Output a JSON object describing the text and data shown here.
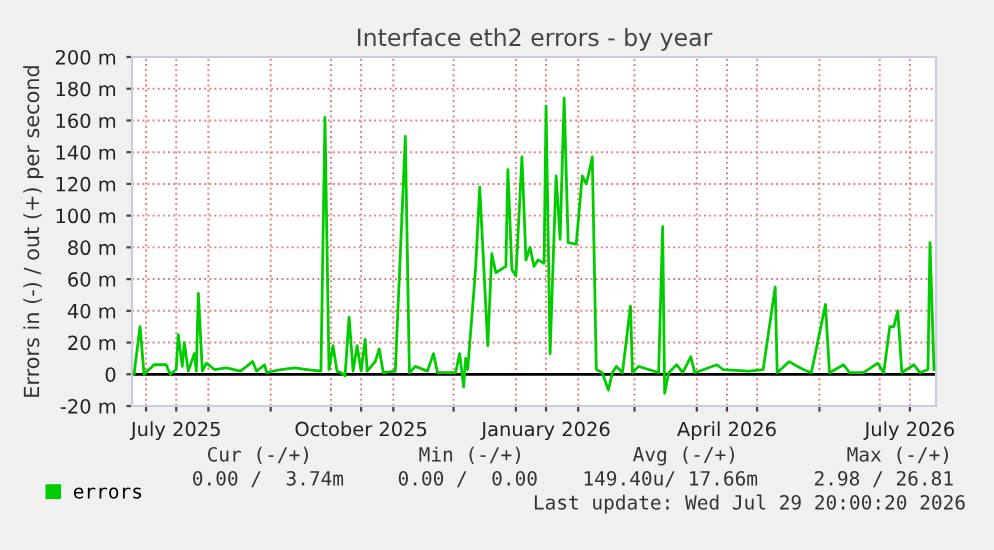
{
  "chart_data": {
    "type": "line",
    "title": "Interface eth2 errors - by year",
    "ylabel": "Errors in (-) / out (+) per second",
    "x": [
      "2025-06-25",
      "2025-06-28",
      "2025-06-30",
      "2025-07-05",
      "2025-07-11",
      "2025-07-13",
      "2025-07-16",
      "2025-07-17",
      "2025-07-19",
      "2025-07-20",
      "2025-07-22",
      "2025-07-25",
      "2025-07-26",
      "2025-07-27",
      "2025-07-29",
      "2025-07-31",
      "2025-08-04",
      "2025-08-10",
      "2025-08-17",
      "2025-08-23",
      "2025-08-25",
      "2025-08-29",
      "2025-08-30",
      "2025-09-06",
      "2025-09-13",
      "2025-09-19",
      "2025-09-26",
      "2025-09-28",
      "2025-09-30",
      "2025-10-02",
      "2025-10-04",
      "2025-10-06",
      "2025-10-08",
      "2025-10-10",
      "2025-10-12",
      "2025-10-14",
      "2025-10-16",
      "2025-10-18",
      "2025-10-19",
      "2025-10-23",
      "2025-10-25",
      "2025-10-27",
      "2025-11-02",
      "2025-11-07",
      "2025-11-09",
      "2025-11-12",
      "2025-11-18",
      "2025-11-21",
      "2025-11-23",
      "2025-12-02",
      "2025-12-04",
      "2025-12-06",
      "2025-12-07",
      "2025-12-08",
      "2025-12-11",
      "2025-12-12",
      "2025-12-14",
      "2025-12-16",
      "2025-12-18",
      "2025-12-20",
      "2025-12-22",
      "2025-12-27",
      "2025-12-28",
      "2025-12-30",
      "2026-01-01",
      "2026-01-04",
      "2026-01-06",
      "2026-01-08",
      "2026-01-10",
      "2026-01-12",
      "2026-01-15",
      "2026-01-16",
      "2026-01-18",
      "2026-01-20",
      "2026-01-21",
      "2026-01-23",
      "2026-01-25",
      "2026-01-27",
      "2026-01-31",
      "2026-02-03",
      "2026-02-05",
      "2026-02-06",
      "2026-02-08",
      "2026-02-10",
      "2026-02-13",
      "2026-02-16",
      "2026-02-18",
      "2026-02-20",
      "2026-02-23",
      "2026-02-27",
      "2026-02-28",
      "2026-03-03",
      "2026-03-08",
      "2026-03-13",
      "2026-03-15",
      "2026-03-16",
      "2026-03-18",
      "2026-03-22",
      "2026-03-25",
      "2026-03-29",
      "2026-03-31",
      "2026-04-11",
      "2026-04-14",
      "2026-04-27",
      "2026-05-04",
      "2026-05-10",
      "2026-05-11",
      "2026-05-17",
      "2026-05-21",
      "2026-05-24",
      "2026-05-28",
      "2026-06-04",
      "2026-06-06",
      "2026-06-13",
      "2026-06-16",
      "2026-06-23",
      "2026-06-30",
      "2026-07-03",
      "2026-07-06",
      "2026-07-08",
      "2026-07-10",
      "2026-07-12",
      "2026-07-18",
      "2026-07-21",
      "2026-07-25",
      "2026-07-26",
      "2026-07-28"
    ],
    "series": [
      {
        "name": "errors",
        "color": "#00cc00",
        "values": [
          0,
          30,
          0,
          6,
          6,
          0,
          3,
          25,
          5,
          20,
          2,
          13,
          2,
          51,
          2,
          7,
          3,
          4,
          2,
          8,
          2,
          6,
          1,
          3,
          4,
          3,
          2,
          162,
          3,
          18,
          2,
          1,
          -1,
          36,
          2,
          18,
          2,
          22,
          2,
          8,
          16,
          1,
          2,
          150,
          1,
          5,
          2,
          13,
          1,
          1,
          13,
          -8,
          10,
          3,
          51,
          68,
          118,
          68,
          18,
          76,
          64,
          68,
          129,
          66,
          62,
          137,
          72,
          80,
          68,
          72,
          70,
          169,
          13,
          89,
          125,
          85,
          174,
          83,
          82,
          125,
          120,
          125,
          137,
          3,
          1,
          -10,
          1,
          5,
          1,
          43,
          1,
          5,
          3,
          1,
          93,
          -12,
          1,
          6,
          1,
          11,
          1,
          6,
          3,
          2,
          3,
          55,
          1,
          8,
          5,
          3,
          1,
          44,
          1,
          6,
          1,
          1,
          7,
          1,
          30,
          30,
          40,
          1,
          6,
          1,
          3,
          83,
          3
        ]
      }
    ],
    "xlim": [
      "2025-06-24",
      "2026-07-29"
    ],
    "xticks": [
      {
        "value": "2025-07-01",
        "label": null
      },
      {
        "value": "2025-07-16",
        "label": "July 2025"
      },
      {
        "value": "2025-08-01",
        "label": null
      },
      {
        "value": "2025-09-01",
        "label": null
      },
      {
        "value": "2025-10-01",
        "label": null
      },
      {
        "value": "2025-10-16",
        "label": "October 2025"
      },
      {
        "value": "2025-11-01",
        "label": null
      },
      {
        "value": "2025-12-01",
        "label": null
      },
      {
        "value": "2026-01-01",
        "label": null
      },
      {
        "value": "2026-01-16",
        "label": "January 2026"
      },
      {
        "value": "2026-02-01",
        "label": null
      },
      {
        "value": "2026-03-01",
        "label": null
      },
      {
        "value": "2026-04-01",
        "label": null
      },
      {
        "value": "2026-04-16",
        "label": "April 2026"
      },
      {
        "value": "2026-05-01",
        "label": null
      },
      {
        "value": "2026-06-01",
        "label": null
      },
      {
        "value": "2026-07-01",
        "label": null
      },
      {
        "value": "2026-07-16",
        "label": "July 2026"
      }
    ],
    "ylim": [
      -20,
      200
    ],
    "yticks": [
      {
        "value": -20,
        "label": "-20 m"
      },
      0,
      {
        "value": 20,
        "label": "20 m"
      },
      {
        "value": 40,
        "label": "40 m"
      },
      {
        "value": 60,
        "label": "60 m"
      },
      {
        "value": 80,
        "label": "80 m"
      },
      {
        "value": 100,
        "label": "100 m"
      },
      {
        "value": 120,
        "label": "120 m"
      },
      {
        "value": 140,
        "label": "140 m"
      },
      {
        "value": 160,
        "label": "160 m"
      },
      {
        "value": 180,
        "label": "180 m"
      },
      {
        "value": 200,
        "label": "200 m"
      }
    ],
    "ref_lines": [
      {
        "axis": "y",
        "value": 0,
        "color": "#000000"
      }
    ],
    "grid": true,
    "legend": "bottom",
    "line_style": "solid",
    "marker": "none",
    "annotations": [
      "Cur (-/+)",
      "Min (-/+)",
      "Avg (-/+)",
      "Max (-/+)",
      "0.00 /  3.74m",
      "0.00 /  0.00",
      "149.40u/ 17.66m",
      "2.98 / 26.81",
      "Last update: Wed Jul 29 20:00:20 2026"
    ]
  }
}
